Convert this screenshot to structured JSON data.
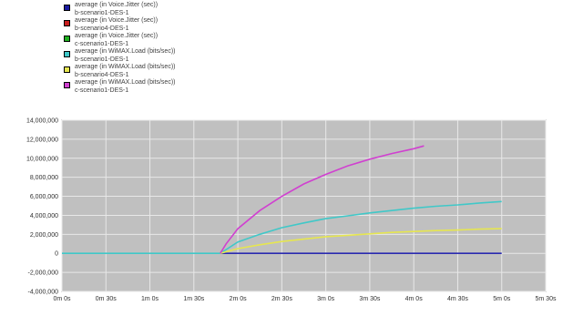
{
  "legend": [
    {
      "metric": "average (in Voice.Jitter (sec))",
      "scenario": "b-scenario1-DES-1",
      "color": "#1a1aa0"
    },
    {
      "metric": "average (in Voice.Jitter (sec))",
      "scenario": "b-scenario4-DES-1",
      "color": "#c81e1e"
    },
    {
      "metric": "average (in Voice.Jitter (sec))",
      "scenario": "c-scenario1-DES-1",
      "color": "#20b020"
    },
    {
      "metric": "average (in WiMAX.Load (bits/sec))",
      "scenario": "b-scenario1-DES-1",
      "color": "#40c8c8"
    },
    {
      "metric": "average (in WiMAX.Load (bits/sec))",
      "scenario": "b-scenario4-DES-1",
      "color": "#e6e650"
    },
    {
      "metric": "average (in WiMAX.Load (bits/sec))",
      "scenario": "c-scenario1-DES-1",
      "color": "#d040d0"
    }
  ],
  "chart_data": {
    "type": "line",
    "xlabel": "",
    "ylabel": "",
    "x_tick_labels": [
      "0m 0s",
      "0m 30s",
      "1m 0s",
      "1m 30s",
      "2m 0s",
      "2m 30s",
      "3m 0s",
      "3m 30s",
      "4m 0s",
      "4m 30s",
      "5m 0s",
      "5m 30s"
    ],
    "x_ticks_sec": [
      0,
      30,
      60,
      90,
      120,
      150,
      180,
      210,
      240,
      270,
      300,
      330
    ],
    "y_tick_labels": [
      "14,000,000",
      "12,000,000",
      "10,000,000",
      "8,000,000",
      "6,000,000",
      "4,000,000",
      "2,000,000",
      "0",
      "-2,000,000",
      "-4,000,000"
    ],
    "xlim_sec": [
      0,
      330
    ],
    "ylim": [
      -4000000,
      14000000
    ],
    "grid": true,
    "legend_position": "top-left",
    "plot_background": "#c0c0c0",
    "series": [
      {
        "metric": "average (in Voice.Jitter (sec))",
        "scenario": "b-scenario1-DES-1",
        "color": "#2a2ab0",
        "points": [
          [
            108,
            0
          ],
          [
            300,
            0
          ]
        ]
      },
      {
        "metric": "average (in WiMAX.Load (bits/sec))",
        "scenario": "b-scenario1-DES-1",
        "color": "#40c8c8",
        "points": [
          [
            0,
            0
          ],
          [
            108,
            0
          ],
          [
            120,
            1200000
          ],
          [
            135,
            2000000
          ],
          [
            150,
            2700000
          ],
          [
            165,
            3200000
          ],
          [
            180,
            3650000
          ],
          [
            195,
            3950000
          ],
          [
            210,
            4250000
          ],
          [
            225,
            4500000
          ],
          [
            240,
            4750000
          ],
          [
            255,
            4950000
          ],
          [
            270,
            5100000
          ],
          [
            285,
            5300000
          ],
          [
            300,
            5450000
          ]
        ]
      },
      {
        "metric": "average (in WiMAX.Load (bits/sec))",
        "scenario": "b-scenario4-DES-1",
        "color": "#e6e650",
        "points": [
          [
            108,
            0
          ],
          [
            120,
            500000
          ],
          [
            135,
            900000
          ],
          [
            150,
            1250000
          ],
          [
            165,
            1500000
          ],
          [
            180,
            1750000
          ],
          [
            195,
            1900000
          ],
          [
            210,
            2050000
          ],
          [
            225,
            2200000
          ],
          [
            240,
            2300000
          ],
          [
            255,
            2400000
          ],
          [
            270,
            2450000
          ],
          [
            285,
            2550000
          ],
          [
            300,
            2600000
          ]
        ]
      },
      {
        "metric": "average (in WiMAX.Load (bits/sec))",
        "scenario": "c-scenario1-DES-1",
        "color": "#d040d0",
        "points": [
          [
            108,
            0
          ],
          [
            112,
            1000000
          ],
          [
            120,
            2600000
          ],
          [
            135,
            4500000
          ],
          [
            150,
            6000000
          ],
          [
            165,
            7300000
          ],
          [
            180,
            8300000
          ],
          [
            195,
            9200000
          ],
          [
            210,
            9900000
          ],
          [
            225,
            10500000
          ],
          [
            240,
            11000000
          ],
          [
            247,
            11300000
          ]
        ]
      }
    ]
  }
}
